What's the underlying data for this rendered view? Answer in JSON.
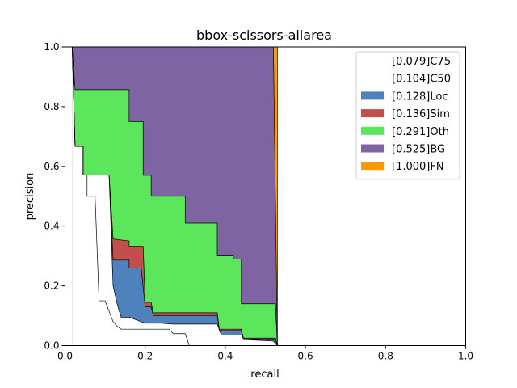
{
  "chart_data": {
    "type": "area",
    "title": "bbox-scissors-allarea",
    "xlabel": "recall",
    "ylabel": "precision",
    "xlim": [
      0,
      1
    ],
    "ylim": [
      0,
      1
    ],
    "x_ticks": [
      "0.0",
      "0.2",
      "0.4",
      "0.6",
      "0.8",
      "1.0"
    ],
    "y_ticks": [
      "0.0",
      "0.2",
      "0.4",
      "0.6",
      "0.8",
      "1.0"
    ],
    "grid": false,
    "legend_position": "top-right",
    "series": [
      {
        "name": "[1.000]FN",
        "color": "#FF9900",
        "points": [
          [
            0.52,
            1.0
          ],
          [
            0.53,
            1.0
          ],
          [
            0.53,
            0.0
          ],
          [
            1.0,
            0.0
          ],
          [
            1.0,
            1.0
          ]
        ]
      },
      {
        "name": "[0.525]BG",
        "color": "#7F64A3",
        "points": [
          [
            0.018,
            1.0
          ],
          [
            0.52,
            1.0
          ],
          [
            0.53,
            0.0
          ]
        ]
      },
      {
        "name": "[0.291]Oth",
        "color": "#5CE65C",
        "points": [
          [
            0.018,
            1.0
          ],
          [
            0.025,
            0.857
          ],
          [
            0.16,
            0.857
          ],
          [
            0.16,
            0.75
          ],
          [
            0.195,
            0.75
          ],
          [
            0.195,
            0.57
          ],
          [
            0.215,
            0.57
          ],
          [
            0.215,
            0.5
          ],
          [
            0.3,
            0.5
          ],
          [
            0.3,
            0.41
          ],
          [
            0.38,
            0.41
          ],
          [
            0.38,
            0.3
          ],
          [
            0.42,
            0.3
          ],
          [
            0.42,
            0.29
          ],
          [
            0.44,
            0.29
          ],
          [
            0.44,
            0.14
          ],
          [
            0.525,
            0.14
          ],
          [
            0.53,
            0.0
          ]
        ]
      },
      {
        "name": "[0.136]Sim",
        "color": "#C1504C",
        "points": [
          [
            0.018,
            1.0
          ],
          [
            0.025,
            0.667
          ],
          [
            0.045,
            0.667
          ],
          [
            0.045,
            0.571
          ],
          [
            0.11,
            0.571
          ],
          [
            0.12,
            0.357
          ],
          [
            0.16,
            0.35
          ],
          [
            0.16,
            0.333
          ],
          [
            0.195,
            0.333
          ],
          [
            0.2,
            0.145
          ],
          [
            0.215,
            0.145
          ],
          [
            0.22,
            0.11
          ],
          [
            0.38,
            0.11
          ],
          [
            0.385,
            0.055
          ],
          [
            0.44,
            0.055
          ],
          [
            0.445,
            0.025
          ],
          [
            0.525,
            0.025
          ],
          [
            0.53,
            0.0
          ]
        ]
      },
      {
        "name": "[0.128]Loc",
        "color": "#4F81BD",
        "points": [
          [
            0.018,
            1.0
          ],
          [
            0.025,
            0.667
          ],
          [
            0.045,
            0.667
          ],
          [
            0.045,
            0.571
          ],
          [
            0.11,
            0.571
          ],
          [
            0.12,
            0.286
          ],
          [
            0.16,
            0.286
          ],
          [
            0.16,
            0.26
          ],
          [
            0.19,
            0.26
          ],
          [
            0.2,
            0.13
          ],
          [
            0.215,
            0.13
          ],
          [
            0.22,
            0.1
          ],
          [
            0.38,
            0.1
          ],
          [
            0.385,
            0.05
          ],
          [
            0.44,
            0.05
          ],
          [
            0.445,
            0.02
          ],
          [
            0.525,
            0.02
          ],
          [
            0.53,
            0.0
          ]
        ]
      },
      {
        "name": "[0.104]C50",
        "color": "#FFFFFF",
        "points": [
          [
            0.018,
            1.0
          ],
          [
            0.025,
            0.667
          ],
          [
            0.045,
            0.667
          ],
          [
            0.045,
            0.571
          ],
          [
            0.11,
            0.571
          ],
          [
            0.12,
            0.2
          ],
          [
            0.13,
            0.14
          ],
          [
            0.14,
            0.095
          ],
          [
            0.16,
            0.095
          ],
          [
            0.2,
            0.075
          ],
          [
            0.24,
            0.075
          ],
          [
            0.27,
            0.072
          ],
          [
            0.38,
            0.072
          ],
          [
            0.39,
            0.035
          ],
          [
            0.44,
            0.035
          ],
          [
            0.45,
            0.02
          ],
          [
            0.52,
            0.015
          ],
          [
            0.53,
            0.0
          ]
        ]
      },
      {
        "name": "[0.079]C75",
        "color": "#FFFFFF",
        "points": [
          [
            0.018,
            1.0
          ],
          [
            0.025,
            0.667
          ],
          [
            0.045,
            0.667
          ],
          [
            0.045,
            0.571
          ],
          [
            0.055,
            0.571
          ],
          [
            0.055,
            0.5
          ],
          [
            0.075,
            0.5
          ],
          [
            0.085,
            0.15
          ],
          [
            0.1,
            0.15
          ],
          [
            0.12,
            0.08
          ],
          [
            0.13,
            0.065
          ],
          [
            0.14,
            0.055
          ],
          [
            0.26,
            0.055
          ],
          [
            0.27,
            0.04
          ],
          [
            0.3,
            0.04
          ],
          [
            0.31,
            0.0
          ],
          [
            0.53,
            0.0
          ]
        ]
      }
    ],
    "legend_entries": [
      "[0.079]C75",
      "[0.104]C50",
      "[0.128]Loc",
      "[0.136]Sim",
      "[0.291]Oth",
      "[0.525]BG",
      "[1.000]FN"
    ]
  }
}
